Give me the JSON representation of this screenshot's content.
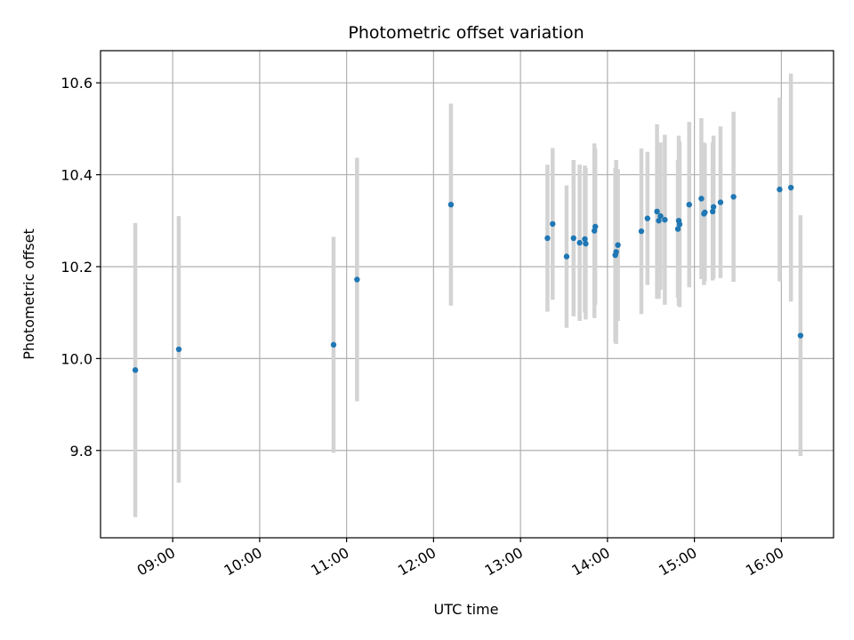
{
  "chart_data": {
    "type": "scatter",
    "title": "Photometric offset variation",
    "xlabel": "UTC time",
    "ylabel": "Photometric offset",
    "grid": true,
    "xlim": [
      8.17,
      16.6
    ],
    "ylim": [
      9.61,
      10.67
    ],
    "x_ticks": [
      {
        "value": 9,
        "label": "09:00"
      },
      {
        "value": 10,
        "label": "10:00"
      },
      {
        "value": 11,
        "label": "11:00"
      },
      {
        "value": 12,
        "label": "12:00"
      },
      {
        "value": 13,
        "label": "13:00"
      },
      {
        "value": 14,
        "label": "14:00"
      },
      {
        "value": 15,
        "label": "15:00"
      },
      {
        "value": 16,
        "label": "16:00"
      }
    ],
    "y_ticks": [
      {
        "value": 9.8,
        "label": "9.8"
      },
      {
        "value": 10.0,
        "label": "10.0"
      },
      {
        "value": 10.2,
        "label": "10.2"
      },
      {
        "value": 10.4,
        "label": "10.4"
      },
      {
        "value": 10.6,
        "label": "10.6"
      }
    ],
    "colors": {
      "point": "#1f77b4",
      "errorbar": "#d3d3d3",
      "grid": "#b0b0b0",
      "axis": "#000000"
    },
    "series": [
      {
        "name": "Photometric offset",
        "points": [
          {
            "x": 8.57,
            "y": 9.975,
            "err": 0.32
          },
          {
            "x": 9.07,
            "y": 10.02,
            "err": 0.29
          },
          {
            "x": 10.85,
            "y": 10.03,
            "err": 0.235
          },
          {
            "x": 11.12,
            "y": 10.172,
            "err": 0.265
          },
          {
            "x": 12.2,
            "y": 10.335,
            "err": 0.22
          },
          {
            "x": 13.31,
            "y": 10.262,
            "err": 0.16
          },
          {
            "x": 13.37,
            "y": 10.293,
            "err": 0.165
          },
          {
            "x": 13.53,
            "y": 10.222,
            "err": 0.155
          },
          {
            "x": 13.61,
            "y": 10.262,
            "err": 0.17
          },
          {
            "x": 13.68,
            "y": 10.252,
            "err": 0.17
          },
          {
            "x": 13.74,
            "y": 10.26,
            "err": 0.16
          },
          {
            "x": 13.75,
            "y": 10.25,
            "err": 0.165
          },
          {
            "x": 13.85,
            "y": 10.278,
            "err": 0.19
          },
          {
            "x": 13.86,
            "y": 10.287,
            "err": 0.17
          },
          {
            "x": 14.09,
            "y": 10.225,
            "err": 0.19
          },
          {
            "x": 14.1,
            "y": 10.232,
            "err": 0.2
          },
          {
            "x": 14.12,
            "y": 10.247,
            "err": 0.165
          },
          {
            "x": 14.39,
            "y": 10.277,
            "err": 0.18
          },
          {
            "x": 14.46,
            "y": 10.305,
            "err": 0.145
          },
          {
            "x": 14.57,
            "y": 10.32,
            "err": 0.19
          },
          {
            "x": 14.59,
            "y": 10.3,
            "err": 0.17
          },
          {
            "x": 14.61,
            "y": 10.31,
            "err": 0.16
          },
          {
            "x": 14.66,
            "y": 10.302,
            "err": 0.185
          },
          {
            "x": 14.81,
            "y": 10.282,
            "err": 0.15
          },
          {
            "x": 14.82,
            "y": 10.3,
            "err": 0.185
          },
          {
            "x": 14.83,
            "y": 10.292,
            "err": 0.18
          },
          {
            "x": 14.94,
            "y": 10.335,
            "err": 0.18
          },
          {
            "x": 15.08,
            "y": 10.348,
            "err": 0.175
          },
          {
            "x": 15.11,
            "y": 10.315,
            "err": 0.155
          },
          {
            "x": 15.12,
            "y": 10.318,
            "err": 0.15
          },
          {
            "x": 15.21,
            "y": 10.32,
            "err": 0.15
          },
          {
            "x": 15.22,
            "y": 10.33,
            "err": 0.155
          },
          {
            "x": 15.3,
            "y": 10.34,
            "err": 0.165
          },
          {
            "x": 15.45,
            "y": 10.352,
            "err": 0.185
          },
          {
            "x": 15.98,
            "y": 10.368,
            "err": 0.2
          },
          {
            "x": 16.11,
            "y": 10.372,
            "err": 0.248
          },
          {
            "x": 16.22,
            "y": 10.05,
            "err": 0.262
          }
        ]
      }
    ]
  }
}
